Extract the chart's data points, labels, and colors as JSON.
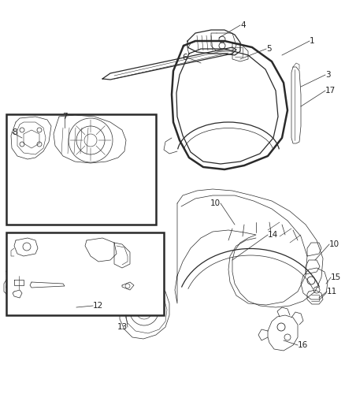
{
  "background": "#ffffff",
  "line_color": "#2a2a2a",
  "label_color": "#222222",
  "label_fontsize": 7.0,
  "fig_w": 4.38,
  "fig_h": 5.33,
  "dpi": 100
}
